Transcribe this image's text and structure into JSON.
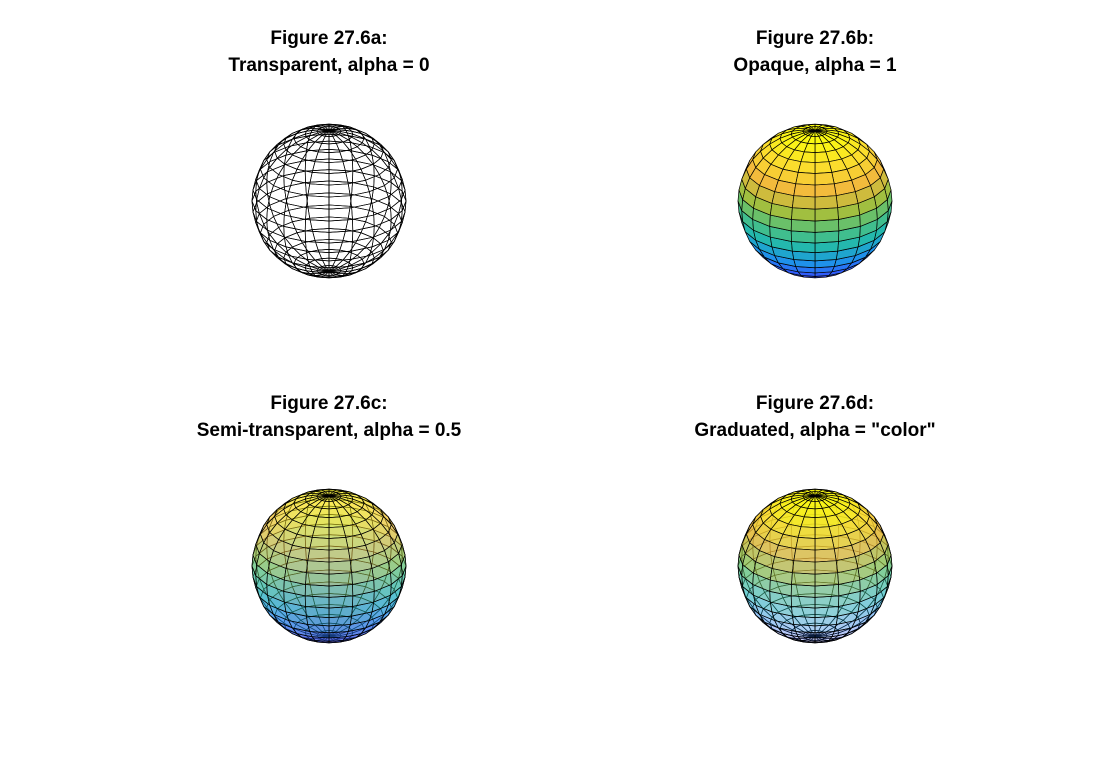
{
  "panels": [
    {
      "line1": "Figure 27.6a:",
      "line2": "Transparent, alpha = 0",
      "mode": "transparent",
      "alpha": 0
    },
    {
      "line1": "Figure 27.6b:",
      "line2": "Opaque, alpha = 1",
      "mode": "opaque",
      "alpha": 1
    },
    {
      "line1": "Figure 27.6c:",
      "line2": "Semi-transparent, alpha = 0.5",
      "mode": "semi",
      "alpha": 0.5
    },
    {
      "line1": "Figure 27.6d:",
      "line2": "Graduated, alpha = \"color\"",
      "mode": "graduated",
      "alpha": "color"
    }
  ],
  "colormap": [
    "#3e26a8",
    "#2f5ffe",
    "#1d96e8",
    "#21b7b0",
    "#4ec17e",
    "#a7bf3c",
    "#f1b83d",
    "#fbdc2e",
    "#f9fb0e"
  ],
  "edge_color": "#000000"
}
